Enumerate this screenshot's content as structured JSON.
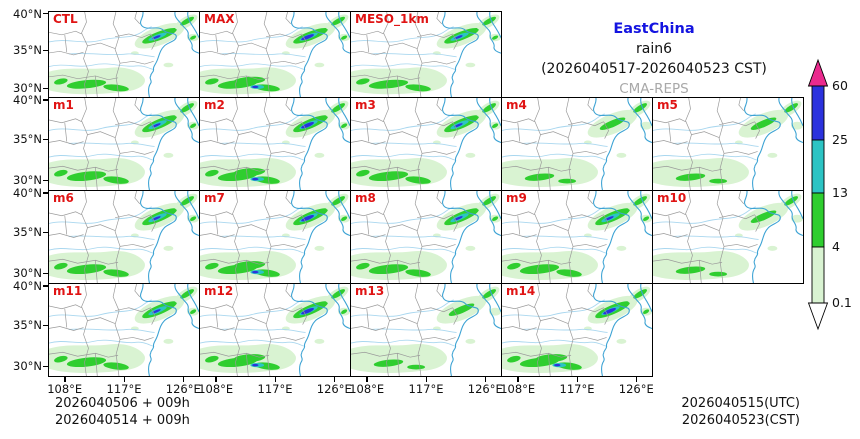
{
  "title": {
    "region": "EastChina",
    "variable": "rain6",
    "period": "(2026040517-2026040523 CST)",
    "model": "CMA-REPS"
  },
  "colors": {
    "region_title": "#1414e0",
    "model_title": "#a9a9a9",
    "panel_label": "#e01414",
    "coast": "#3da3d4",
    "river": "#a9d7ef",
    "border": "#9a9a9a",
    "rain_light": "#d9f3d2",
    "rain_green": "#2fce2f",
    "rain_teal": "#2cc4c4",
    "rain_blue": "#2b32dd",
    "over_pink": "#ea2a8e",
    "under_white": "#ffffff"
  },
  "axes": {
    "lat_ticks": [
      "40°N",
      "35°N",
      "30°N"
    ],
    "lon_ticks": [
      "108°E",
      "117°E",
      "126°E"
    ]
  },
  "colorbar": {
    "levels": [
      "60",
      "25",
      "13",
      "4",
      "0.1"
    ],
    "segment_colors": [
      "#2b32dd",
      "#2cc4c4",
      "#2fce2f",
      "#d9f3d2"
    ],
    "over_color": "#ea2a8e",
    "under_color": "#ffffff"
  },
  "panels": [
    {
      "label": "CTL",
      "row": 0,
      "col": 0,
      "variant": "medium"
    },
    {
      "label": "MAX",
      "row": 0,
      "col": 1,
      "variant": "heavy"
    },
    {
      "label": "MESO_1km",
      "row": 0,
      "col": 2,
      "variant": "medium"
    },
    {
      "label": "m1",
      "row": 1,
      "col": 0,
      "variant": "medium"
    },
    {
      "label": "m2",
      "row": 1,
      "col": 1,
      "variant": "heavy"
    },
    {
      "label": "m3",
      "row": 1,
      "col": 2,
      "variant": "medium"
    },
    {
      "label": "m4",
      "row": 1,
      "col": 3,
      "variant": "light"
    },
    {
      "label": "m5",
      "row": 1,
      "col": 4,
      "variant": "light"
    },
    {
      "label": "m6",
      "row": 2,
      "col": 0,
      "variant": "medium"
    },
    {
      "label": "m7",
      "row": 2,
      "col": 1,
      "variant": "heavy"
    },
    {
      "label": "m8",
      "row": 2,
      "col": 2,
      "variant": "medium"
    },
    {
      "label": "m9",
      "row": 2,
      "col": 3,
      "variant": "medium"
    },
    {
      "label": "m10",
      "row": 2,
      "col": 4,
      "variant": "light"
    },
    {
      "label": "m11",
      "row": 3,
      "col": 0,
      "variant": "medium"
    },
    {
      "label": "m12",
      "row": 3,
      "col": 1,
      "variant": "heavy"
    },
    {
      "label": "m13",
      "row": 3,
      "col": 2,
      "variant": "light"
    },
    {
      "label": "m14",
      "row": 3,
      "col": 3,
      "variant": "heavy"
    }
  ],
  "footer": {
    "init_lines": [
      "2026040506 + 009h",
      "2026040514 + 009h"
    ],
    "valid_lines": [
      "2026040515(UTC)",
      "2026040523(CST)"
    ]
  }
}
